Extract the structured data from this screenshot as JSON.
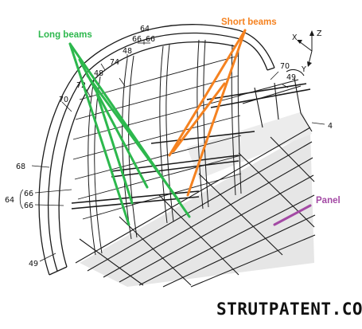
{
  "annotations": {
    "long_beams": {
      "label": "Long beams",
      "color": "#2db84d"
    },
    "short_beams": {
      "label": "Short beams",
      "color": "#f58220"
    },
    "panel": {
      "label": "Panel",
      "color": "#a349a4"
    }
  },
  "reference_numerals": {
    "n64_top": "64",
    "n66_top_a": "66",
    "n66_top_b": "66",
    "n48_a": "48",
    "n48_b": "48",
    "n74": "74",
    "n72": "72",
    "n70_left": "70",
    "n70_right": "70",
    "n49_top": "49",
    "n49_bottom": "49",
    "n4": "4",
    "n68": "68",
    "n64_left": "64",
    "n66_left_a": "66",
    "n66_left_b": "66"
  },
  "axes": {
    "x": "X",
    "y": "Y",
    "z": "Z"
  },
  "watermark": "STRUTPATENT.COM",
  "colors": {
    "line": "#1a1a1a",
    "panel_fill": "#e6e6e6",
    "background": "#ffffff"
  }
}
